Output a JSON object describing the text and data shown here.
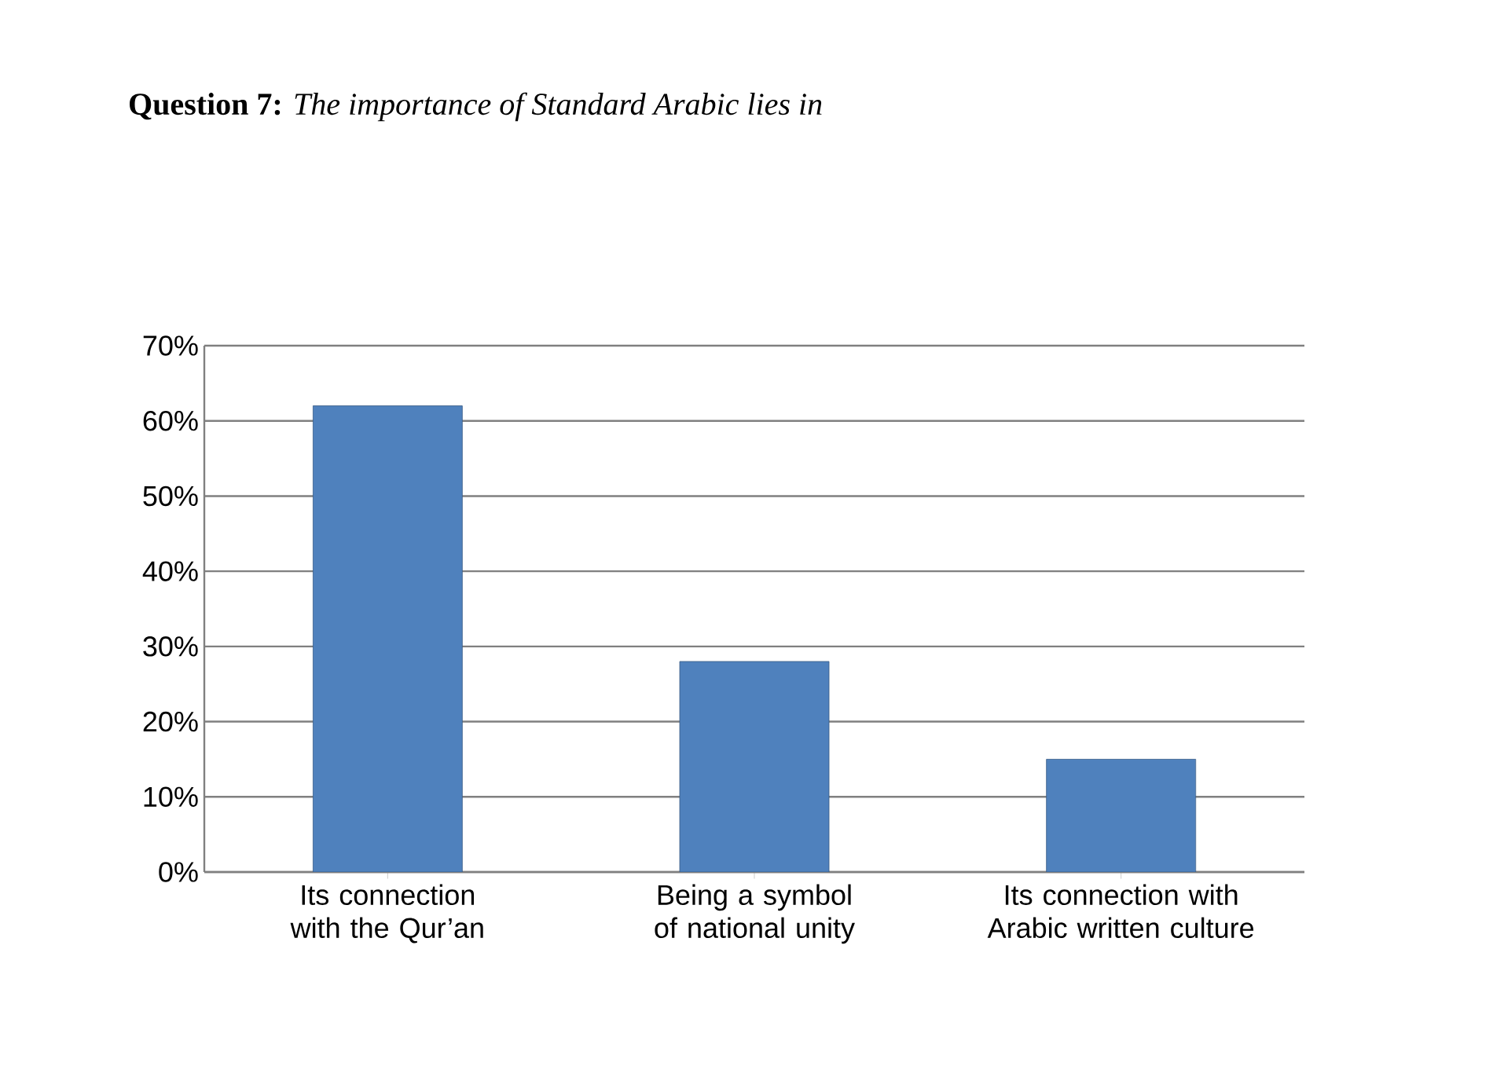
{
  "chart_data": {
    "type": "bar",
    "title": "**Question 7:** *The importance of Standard Arabic lies in*",
    "categories": [
      "Its connection with the Qur’an",
      "Being a symbol of national unity",
      "Its connection with Arabic written culture"
    ],
    "values": [
      62,
      28,
      15
    ],
    "color": "#4f81bd",
    "ylim": [
      0,
      70
    ],
    "yticks": [
      {
        "value": 0,
        "label": "0%"
      },
      {
        "value": 10,
        "label": "10%"
      },
      {
        "value": 20,
        "label": "20%"
      },
      {
        "value": 30,
        "label": "30%"
      },
      {
        "value": 40,
        "label": "40%"
      },
      {
        "value": 50,
        "label": "50%"
      },
      {
        "value": 60,
        "label": "60%"
      },
      {
        "value": 70,
        "label": "70%"
      }
    ],
    "grid": "y"
  }
}
